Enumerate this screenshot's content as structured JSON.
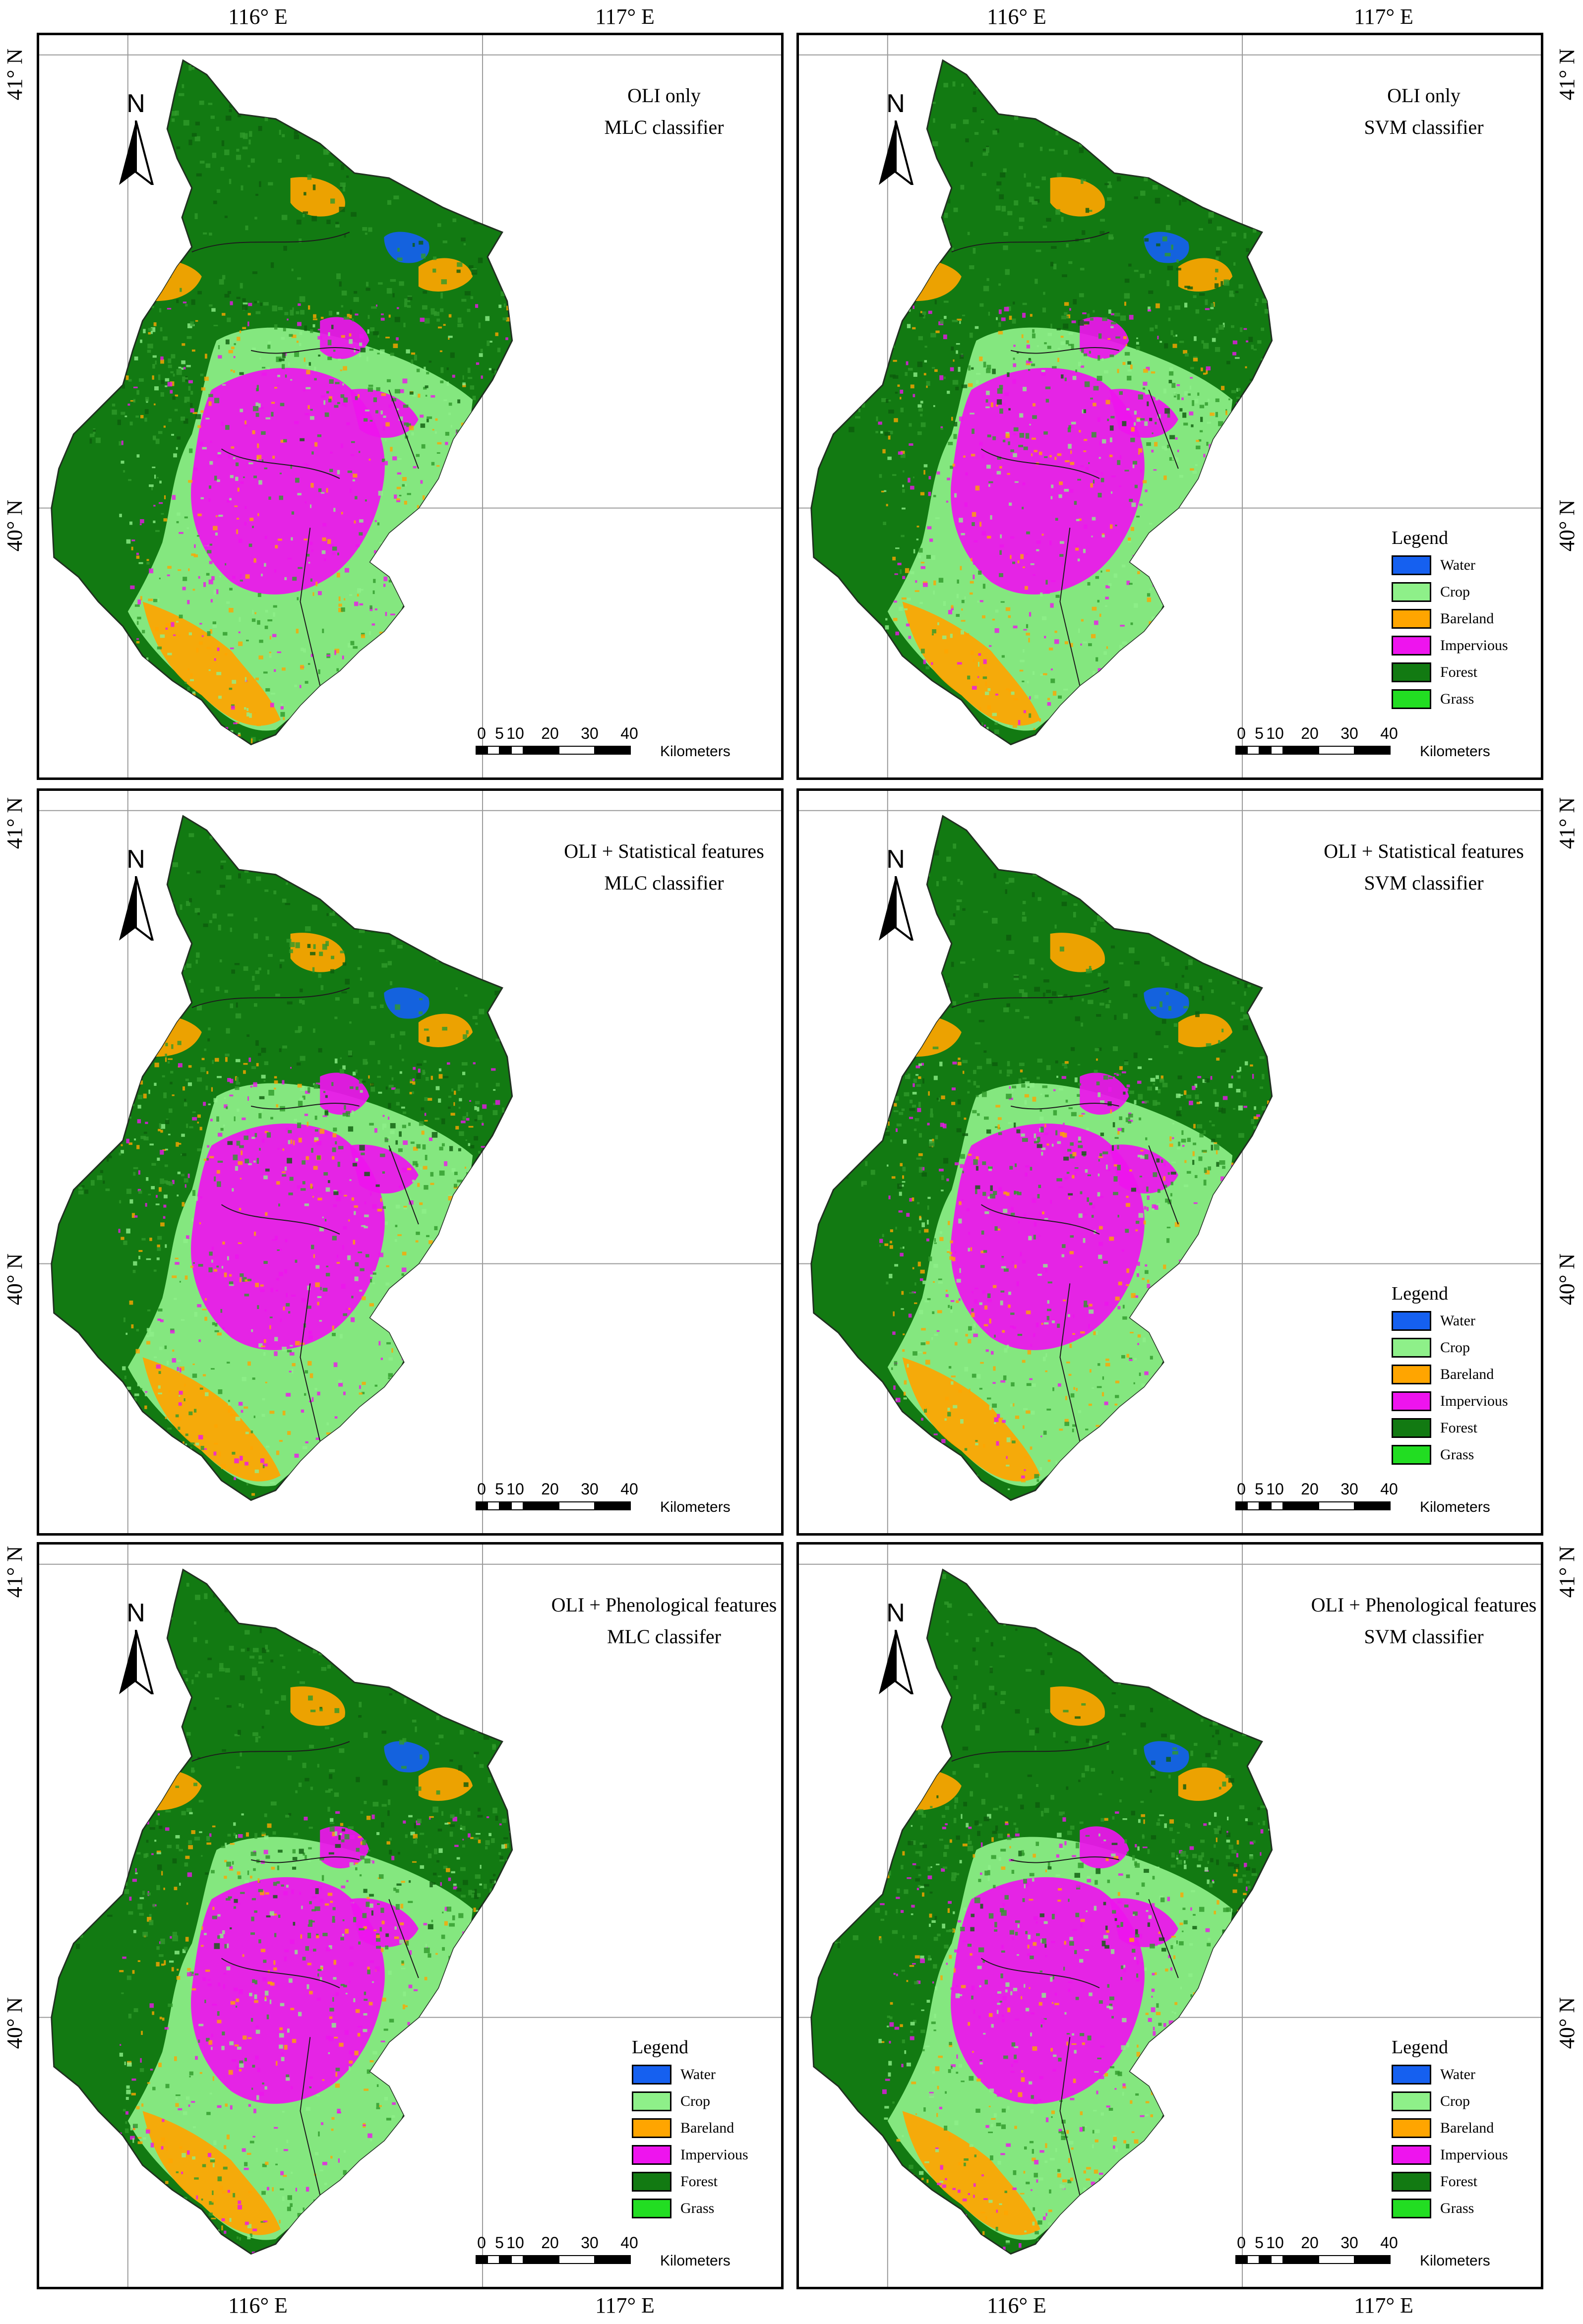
{
  "axes": {
    "lon_labels": [
      "116° E",
      "117° E"
    ],
    "lat_labels": [
      "41° N",
      "40° N"
    ]
  },
  "panels": [
    {
      "title_line1": "OLI only",
      "title_line2": "MLC classifier",
      "has_legend": false
    },
    {
      "title_line1": "OLI only",
      "title_line2": "SVM classifier",
      "has_legend": true
    },
    {
      "title_line1": "OLI + Statistical features",
      "title_line2": "MLC classifier",
      "has_legend": false
    },
    {
      "title_line1": "OLI + Statistical features",
      "title_line2": "SVM classifier",
      "has_legend": true
    },
    {
      "title_line1": "OLI + Phenological features",
      "title_line2": "MLC classifer",
      "has_legend": true
    },
    {
      "title_line1": "OLI + Phenological features",
      "title_line2": "SVM classifier",
      "has_legend": true
    }
  ],
  "north_arrow_label": "N",
  "legend": {
    "title": "Legend",
    "items": [
      {
        "label": "Water",
        "color": "#1560f0"
      },
      {
        "label": "Crop",
        "color": "#8ef089"
      },
      {
        "label": "Bareland",
        "color": "#ffa500"
      },
      {
        "label": "Impervious",
        "color": "#ee14ee"
      },
      {
        "label": "Forest",
        "color": "#127a12"
      },
      {
        "label": "Grass",
        "color": "#22dd22"
      }
    ]
  },
  "scale_bar": {
    "ticks": [
      "0",
      "5",
      "10",
      "20",
      "30",
      "40"
    ],
    "unit": "Kilometers"
  },
  "map_colors": {
    "forest": "#127a12",
    "forest_light": "#2f9a2a",
    "crop": "#8ef089",
    "bareland": "#ffa500",
    "impervious": "#ee14ee",
    "water": "#1560f0"
  }
}
